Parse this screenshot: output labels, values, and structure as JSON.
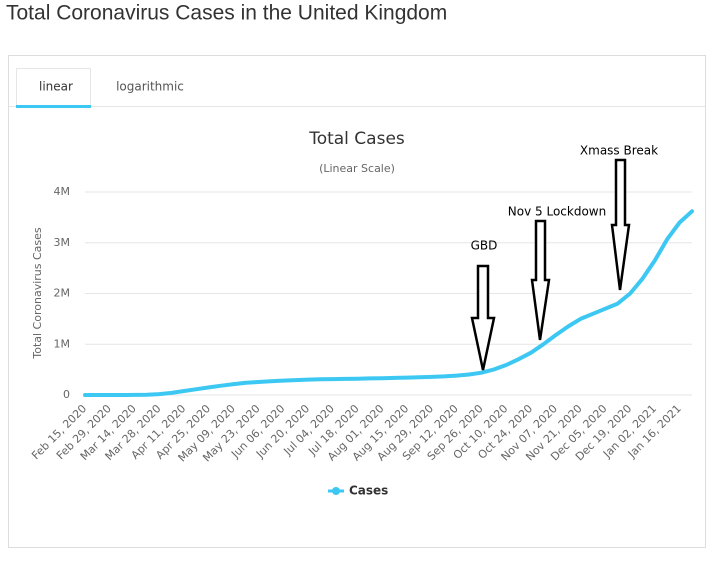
{
  "page_title": "Total Coronavirus Cases in the United Kingdom",
  "tabs": [
    "linear",
    "logarithmic"
  ],
  "active_tab": 0,
  "chart_data": {
    "type": "line",
    "title": "Total Cases",
    "subtitle": "(Linear Scale)",
    "y_label": "Total Coronavirus Cases",
    "categories": [
      "Feb 15, 2020",
      null,
      "Feb 29, 2020",
      null,
      "Mar 14, 2020",
      null,
      "Mar 28, 2020",
      null,
      "Apr 11, 2020",
      null,
      "Apr 25, 2020",
      null,
      "May 09, 2020",
      null,
      "May 23, 2020",
      null,
      "Jun 06, 2020",
      null,
      "Jun 20, 2020",
      null,
      "Jul 04, 2020",
      null,
      "Jul 18, 2020",
      null,
      "Aug 01, 2020",
      null,
      "Aug 15, 2020",
      null,
      "Aug 29, 2020",
      null,
      "Sep 12, 2020",
      null,
      "Sep 26, 2020",
      null,
      "Oct 10, 2020",
      null,
      "Oct 24, 2020",
      null,
      "Nov 07, 2020",
      null,
      "Nov 21, 2020",
      null,
      "Dec 05, 2020",
      null,
      "Dec 19, 2020",
      null,
      "Jan 02, 2021",
      null,
      "Jan 16, 2021",
      null
    ],
    "series": [
      {
        "name": "Cases",
        "color": "#3cc8f2",
        "values": [
          9,
          13,
          23,
          200,
          1100,
          5000,
          17000,
          42000,
          79000,
          114000,
          149000,
          183000,
          215000,
          240000,
          257000,
          272000,
          284000,
          294000,
          303000,
          310000,
          313000,
          318000,
          322000,
          327000,
          331000,
          336000,
          342000,
          349000,
          356000,
          366000,
          382000,
          404000,
          440000,
          502000,
          591000,
          705000,
          834000,
          1000000,
          1180000,
          1350000,
          1500000,
          1600000,
          1700000,
          1800000,
          2000000,
          2290000,
          2650000,
          3070000,
          3400000,
          3620000
        ]
      }
    ],
    "ylim": [
      0,
      4000000
    ],
    "yticks": [
      0,
      {
        "value": 1000000,
        "label": "1M"
      },
      {
        "value": 2000000,
        "label": "2M"
      },
      {
        "value": 3000000,
        "label": "3M"
      },
      {
        "value": 4000000,
        "label": "4M"
      }
    ],
    "grid": true,
    "annotations": [
      "GBD",
      "Nov 5 Lockdown",
      "Xmass Break"
    ]
  }
}
